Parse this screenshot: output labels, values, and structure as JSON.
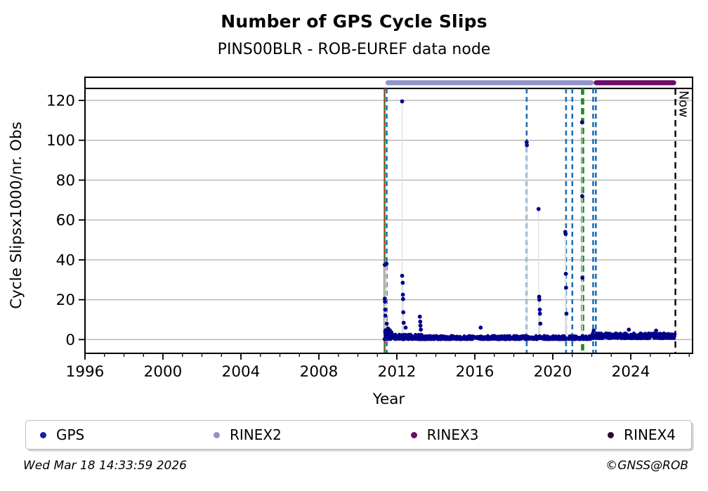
{
  "title": "Number of GPS Cycle Slips",
  "subtitle": "PINS00BLR - ROB-EUREF data node",
  "footer": {
    "timestamp": "Wed Mar 18 14:33:59 2026",
    "credit": "©GNSS@ROB"
  },
  "legend": {
    "items": [
      {
        "label": "GPS",
        "color": "#1c1ca8"
      },
      {
        "label": "RINEX2",
        "color": "#9193c8"
      },
      {
        "label": "RINEX3",
        "color": "#6e0b66"
      },
      {
        "label": "RINEX4",
        "color": "#2e0a2b"
      }
    ]
  },
  "chart_data": {
    "type": "scatter",
    "title": "Number of GPS Cycle Slips",
    "subtitle": "PINS00BLR - ROB-EUREF data node",
    "xlabel": "Year",
    "ylabel": "Cycle Slipsx1000/nr. Obs",
    "xlim": [
      1996,
      2027.17
    ],
    "ylim": [
      -6.9,
      131.6
    ],
    "x_ticks": [
      1996,
      2000,
      2004,
      2008,
      2012,
      2016,
      2020,
      2024
    ],
    "x_minor_tick_step_years": 1,
    "y_ticks": [
      0,
      20,
      40,
      60,
      80,
      100,
      120
    ],
    "grid": "horizontal-only",
    "grid_color": "#b3b3b3",
    "top_boundary_line_y": 126,
    "now_x": 2026.29,
    "now_label": "Now",
    "series": [
      {
        "name": "GPS",
        "color": "#00008b",
        "marker": "circle",
        "spike_points": [
          [
            2011.38,
            37.5
          ],
          [
            2011.38,
            20.5
          ],
          [
            2011.39,
            19
          ],
          [
            2011.4,
            15
          ],
          [
            2011.41,
            12
          ],
          [
            2011.47,
            38
          ],
          [
            2011.48,
            8
          ],
          [
            2011.55,
            5.5
          ],
          [
            2012.27,
            119.5
          ],
          [
            2012.27,
            32
          ],
          [
            2012.3,
            28.5
          ],
          [
            2012.31,
            22.5
          ],
          [
            2012.32,
            20.3
          ],
          [
            2012.33,
            13.7
          ],
          [
            2012.35,
            8.4
          ],
          [
            2012.45,
            6
          ],
          [
            2013.18,
            11.5
          ],
          [
            2013.2,
            9
          ],
          [
            2013.21,
            7
          ],
          [
            2013.23,
            5
          ],
          [
            2016.3,
            6
          ],
          [
            2018.66,
            99
          ],
          [
            2018.67,
            97.5
          ],
          [
            2019.27,
            65.5
          ],
          [
            2019.3,
            21.5
          ],
          [
            2019.31,
            20
          ],
          [
            2019.33,
            15
          ],
          [
            2019.34,
            13
          ],
          [
            2019.36,
            8
          ],
          [
            2020.64,
            54
          ],
          [
            2020.66,
            53
          ],
          [
            2020.67,
            33
          ],
          [
            2020.68,
            26
          ],
          [
            2020.7,
            13
          ],
          [
            2021.5,
            109
          ],
          [
            2021.51,
            72
          ],
          [
            2021.52,
            31
          ],
          [
            2022.1,
            4.5
          ],
          [
            2023.9,
            5
          ],
          [
            2025.3,
            4.5
          ]
        ],
        "baseline_band": [
          {
            "x_start": 2011.36,
            "x_end": 2011.75,
            "y_min": 0.2,
            "y_max": 4.8,
            "count": 70
          },
          {
            "x_start": 2011.75,
            "x_end": 2013.4,
            "y_min": 0.1,
            "y_max": 2.6,
            "count": 170
          },
          {
            "x_start": 2013.4,
            "x_end": 2022.0,
            "y_min": 0.1,
            "y_max": 1.9,
            "count": 540
          },
          {
            "x_start": 2022.0,
            "x_end": 2026.28,
            "y_min": 0.6,
            "y_max": 3.2,
            "count": 310
          }
        ]
      }
    ],
    "version_bars": [
      {
        "name": "RINEX2",
        "color": "#9193c8",
        "x_start": 2011.42,
        "x_end": 2022.1
      },
      {
        "name": "RINEX3",
        "color": "#6e0b66",
        "x_start": 2022.1,
        "x_end": 2026.33
      }
    ],
    "event_lines": [
      {
        "x": 2011.37,
        "color": "#1e8b1e",
        "style": "solid",
        "width": 2.4
      },
      {
        "x": 2011.37,
        "color": "#d42a2a",
        "style": "dashed",
        "width": 2.2,
        "dash": "4,4"
      },
      {
        "x": 2011.48,
        "color": "#1b6fb5",
        "style": "dashed",
        "width": 2.6,
        "dash": "7,5"
      },
      {
        "x": 2018.66,
        "color": "#1b6fb5",
        "style": "dashed",
        "width": 2.6,
        "dash": "7,5"
      },
      {
        "x": 2020.68,
        "color": "#1b6fb5",
        "style": "dashed",
        "width": 2.6,
        "dash": "7,5"
      },
      {
        "x": 2021.0,
        "color": "#1b6fb5",
        "style": "dashed",
        "width": 2.6,
        "dash": "7,5"
      },
      {
        "x": 2021.53,
        "color": "#1e8b1e",
        "style": "dashed",
        "width": 4.6,
        "dash": "9,5"
      },
      {
        "x": 2022.07,
        "color": "#1b6fb5",
        "style": "dashed",
        "width": 2.6,
        "dash": "7,5"
      },
      {
        "x": 2022.21,
        "color": "#1b6fb5",
        "style": "dashed",
        "width": 2.6,
        "dash": "7,5"
      },
      {
        "x": 2026.29,
        "color": "#000000",
        "style": "dashed",
        "width": 2.4,
        "dash": "9,6",
        "label": "Now"
      }
    ]
  }
}
